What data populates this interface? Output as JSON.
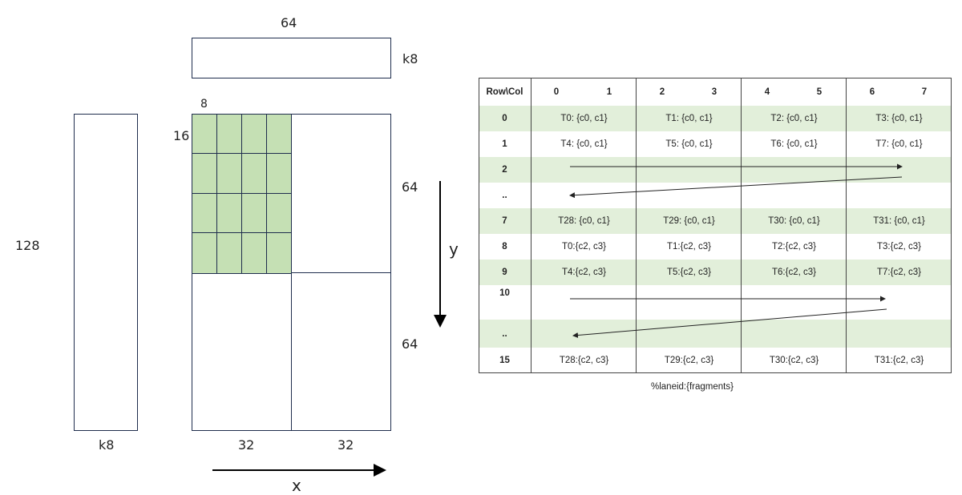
{
  "labels": {
    "top_width": "64",
    "top_k": "k8",
    "cell_w": "8",
    "cell_h": "16",
    "left_height": "128",
    "left_k": "k8",
    "right_upper": "64",
    "right_lower": "64",
    "bottom_left": "32",
    "bottom_right": "32",
    "axis_x": "x",
    "axis_y": "y"
  },
  "table": {
    "corner": "Row\\Col",
    "col_labels": [
      "0",
      "1",
      "2",
      "3",
      "4",
      "5",
      "6",
      "7"
    ],
    "rows": [
      {
        "label": "0",
        "cells": [
          "T0: {c0, c1}",
          "T1: {c0, c1}",
          "T2: {c0, c1}",
          "T3: {c0, c1}"
        ]
      },
      {
        "label": "1",
        "cells": [
          "T4: {c0, c1}",
          "T5: {c0, c1}",
          "T6: {c0, c1}",
          "T7: {c0, c1}"
        ]
      },
      {
        "label": "2",
        "cells": [
          "",
          "",
          "",
          ""
        ]
      },
      {
        "label": "..",
        "cells": [
          "",
          "",
          "",
          ""
        ]
      },
      {
        "label": "7",
        "cells": [
          "T28: {c0, c1}",
          "T29: {c0, c1}",
          "T30: {c0, c1}",
          "T31: {c0, c1}"
        ]
      },
      {
        "label": "8",
        "cells": [
          "T0:{c2, c3}",
          "T1:{c2, c3}",
          "T2:{c2, c3}",
          "T3:{c2, c3}"
        ]
      },
      {
        "label": "9",
        "cells": [
          "T4:{c2, c3}",
          "T5:{c2, c3}",
          "T6:{c2, c3}",
          "T7:{c2, c3}"
        ]
      },
      {
        "label": "10",
        "cells": [
          "",
          "",
          "",
          ""
        ]
      },
      {
        "label": "..",
        "cells": [
          "",
          "",
          "",
          ""
        ]
      },
      {
        "label": "15",
        "cells": [
          "T28:{c2, c3}",
          "T29:{c2, c3}",
          "T30:{c2, c3}",
          "T31:{c2, c3}"
        ]
      }
    ],
    "caption": "%laneid:{fragments}"
  },
  "colors": {
    "green_cell": "#c5e0b4",
    "green_row": "#e2efda",
    "line": "#1f2d4d"
  }
}
